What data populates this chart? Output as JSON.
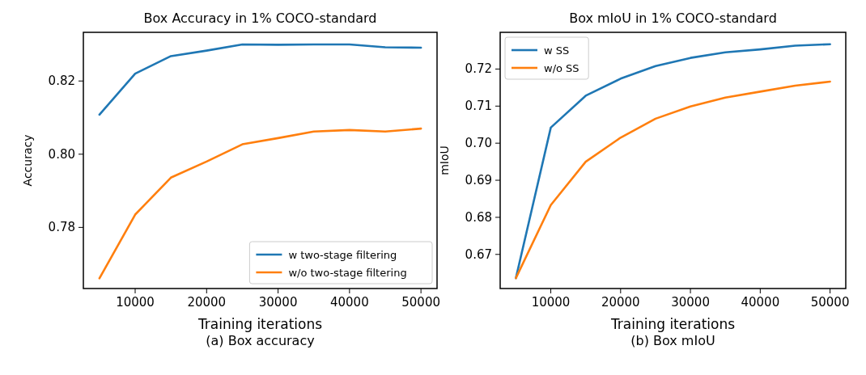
{
  "chart_data": [
    {
      "type": "line",
      "title": "Box Accuracy in 1% COCO-standard",
      "xlabel": "Training iterations",
      "ylabel": "Accuracy",
      "annotations": [
        "(a) Box accuracy"
      ],
      "x": [
        5000,
        10000,
        15000,
        20000,
        25000,
        30000,
        35000,
        40000,
        45000,
        50000
      ],
      "series": [
        {
          "name": "w two-stage filtering",
          "color": "#1f77b4",
          "values": [
            0.8108,
            0.822,
            0.8268,
            0.8283,
            0.83,
            0.8299,
            0.83,
            0.83,
            0.8292,
            0.8291
          ]
        },
        {
          "name": "w/o two-stage filtering",
          "color": "#ff7f0e",
          "values": [
            0.7661,
            0.7835,
            0.7936,
            0.798,
            0.8027,
            0.8044,
            0.8062,
            0.8066,
            0.8062,
            0.807
          ]
        }
      ],
      "xlim": [
        2750,
        52250
      ],
      "xticks": [
        10000,
        20000,
        30000,
        40000,
        50000
      ],
      "ylim": [
        0.7633,
        0.8333
      ],
      "yticks": [
        0.78,
        {
          "value": 0.8,
          "label": "0.80"
        },
        0.82
      ],
      "legend": "bottom right",
      "marker": "none",
      "line_style": "solid"
    },
    {
      "type": "line",
      "title": "Box mIoU in 1% COCO-standard",
      "xlabel": "Training iterations",
      "ylabel": "mIoU",
      "annotations": [
        "(b) Box mIoU"
      ],
      "x": [
        5000,
        10000,
        15000,
        20000,
        25000,
        30000,
        35000,
        40000,
        45000,
        50000
      ],
      "series": [
        {
          "name": "w SS",
          "color": "#1f77b4",
          "values": [
            0.6636,
            0.7042,
            0.7128,
            0.7174,
            0.7208,
            0.723,
            0.7245,
            0.7253,
            0.7263,
            0.7267
          ]
        },
        {
          "name": "w/o SS",
          "color": "#ff7f0e",
          "values": [
            0.6636,
            0.6833,
            0.695,
            0.7015,
            0.7066,
            0.7099,
            0.7123,
            0.7139,
            0.7155,
            0.7166
          ]
        }
      ],
      "xlim": [
        2750,
        52250
      ],
      "xticks": [
        10000,
        20000,
        30000,
        40000,
        50000
      ],
      "ylim": [
        0.6608,
        0.7299
      ],
      "yticks": [
        0.67,
        0.68,
        0.69,
        {
          "value": 0.7,
          "label": "0.70"
        },
        0.71,
        0.72
      ],
      "legend": "top left",
      "marker": "none",
      "line_style": "solid"
    }
  ]
}
